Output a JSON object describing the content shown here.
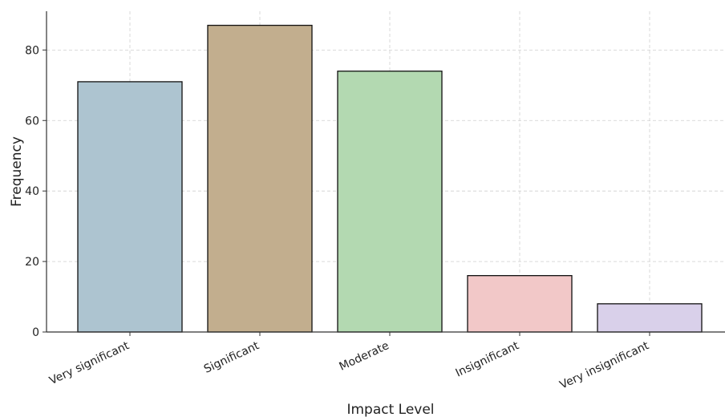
{
  "chart_data": {
    "type": "bar",
    "categories": [
      "Very significant",
      "Significant",
      "Moderate",
      "Insignificant",
      "Very insignificant"
    ],
    "values": [
      71,
      87,
      74,
      16,
      8
    ],
    "colors": [
      "#adc4d0",
      "#c2ae8e",
      "#b3d9b1",
      "#f2c8c8",
      "#d9d0ea"
    ],
    "xlabel": "Impact Level",
    "ylabel": "Frequency",
    "ylim": [
      0,
      91
    ],
    "yticks": [
      0,
      20,
      40,
      60,
      80
    ],
    "grid": true
  }
}
